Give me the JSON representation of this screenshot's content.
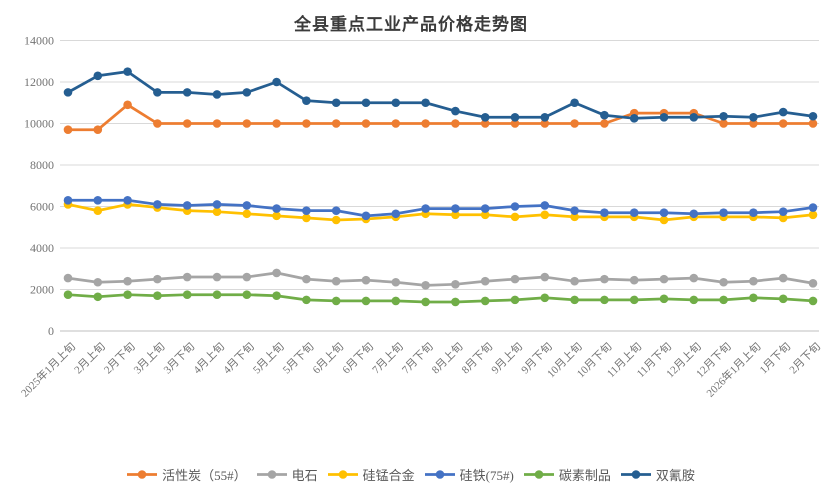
{
  "page": {
    "title": "全县重点工业产品价格走势图"
  },
  "chart_data": {
    "type": "line",
    "title": "全县重点工业产品价格走势图",
    "xlabel": "",
    "ylabel": "",
    "ylim": [
      0,
      14000
    ],
    "ytick_step": 2000,
    "grid": "horizontal",
    "legend_position": "bottom",
    "marker": "circle-on-line",
    "categories": [
      "2025年1月上旬",
      "2月上旬",
      "2月下旬",
      "3月上旬",
      "3月下旬",
      "4月上旬",
      "4月下旬",
      "5月上旬",
      "5月下旬",
      "6月上旬",
      "6月下旬",
      "7月上旬",
      "7月下旬",
      "8月上旬",
      "8月下旬",
      "9月上旬",
      "9月下旬",
      "10月上旬",
      "10月下旬",
      "11月上旬",
      "11月下旬",
      "12月上旬",
      "12月下旬",
      "2026年1月上旬",
      "1月下旬",
      "2月下旬"
    ],
    "series": [
      {
        "name": "活性炭（55#）",
        "color": "#ED7D31",
        "values": [
          9700,
          9700,
          10900,
          10000,
          10000,
          10000,
          10000,
          10000,
          10000,
          10000,
          10000,
          10000,
          10000,
          10000,
          10000,
          10000,
          10000,
          10000,
          10000,
          10500,
          10500,
          10500,
          10000,
          10000,
          10000,
          10000
        ]
      },
      {
        "name": "电石",
        "color": "#A5A5A5",
        "values": [
          2550,
          2350,
          2400,
          2500,
          2600,
          2600,
          2600,
          2800,
          2500,
          2400,
          2450,
          2350,
          2200,
          2250,
          2400,
          2500,
          2600,
          2400,
          2500,
          2450,
          2500,
          2550,
          2350,
          2400,
          2550,
          2300
        ]
      },
      {
        "name": "硅锰合金",
        "color": "#FFC000",
        "values": [
          6100,
          5800,
          6100,
          5950,
          5800,
          5750,
          5650,
          5550,
          5450,
          5350,
          5400,
          5500,
          5650,
          5600,
          5600,
          5500,
          5600,
          5500,
          5500,
          5500,
          5350,
          5500,
          5500,
          5500,
          5450,
          5600
        ]
      },
      {
        "name": "硅铁(75#)",
        "color": "#4472C4",
        "values": [
          6300,
          6300,
          6300,
          6100,
          6050,
          6100,
          6050,
          5900,
          5800,
          5800,
          5550,
          5650,
          5900,
          5900,
          5900,
          6000,
          6050,
          5800,
          5700,
          5700,
          5700,
          5650,
          5700,
          5700,
          5750,
          5950
        ]
      },
      {
        "name": "碳素制品",
        "color": "#70AD47",
        "values": [
          1750,
          1650,
          1750,
          1700,
          1750,
          1750,
          1750,
          1700,
          1500,
          1450,
          1450,
          1450,
          1400,
          1400,
          1450,
          1500,
          1600,
          1500,
          1500,
          1500,
          1550,
          1500,
          1500,
          1600,
          1550,
          1450
        ]
      },
      {
        "name": "双氰胺",
        "color": "#255E91",
        "values": [
          11500,
          12300,
          12500,
          11500,
          11500,
          11400,
          11500,
          12000,
          11100,
          11000,
          11000,
          11000,
          11000,
          10600,
          10300,
          10300,
          10300,
          11000,
          10400,
          10250,
          10300,
          10300,
          10350,
          10300,
          10550,
          10350
        ]
      }
    ]
  }
}
